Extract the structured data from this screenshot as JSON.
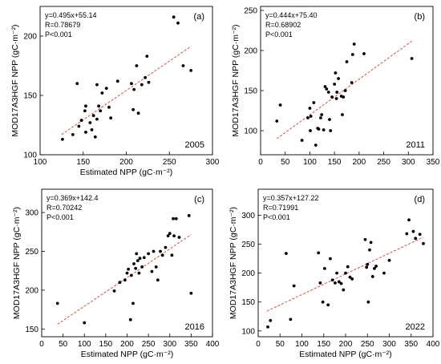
{
  "chart_data": [
    {
      "type": "scatter",
      "panel_label": "(a)",
      "year_label": "2005",
      "xlabel": "Estimated NPP (gC·m⁻²)",
      "ylabel": "MOD17A3HGF NPP (gC·m⁻²)",
      "equation": "y=0.495x+55.14",
      "r_text": "R=0.78679",
      "p_text": "P<0.001",
      "xlim": [
        100,
        300
      ],
      "ylim": [
        100,
        225
      ],
      "xticks": [
        100,
        150,
        200,
        250,
        300
      ],
      "yticks": [
        100,
        150,
        200
      ],
      "fit": {
        "slope": 0.495,
        "intercept": 55.14,
        "x_range": [
          125,
          275
        ]
      },
      "points": [
        [
          126,
          113
        ],
        [
          138,
          117
        ],
        [
          143,
          160
        ],
        [
          145,
          124
        ],
        [
          148,
          129
        ],
        [
          152,
          137
        ],
        [
          153,
          119
        ],
        [
          153,
          141
        ],
        [
          158,
          127
        ],
        [
          160,
          121
        ],
        [
          162,
          133
        ],
        [
          164,
          115
        ],
        [
          166,
          130
        ],
        [
          166,
          159
        ],
        [
          168,
          141
        ],
        [
          170,
          137
        ],
        [
          172,
          152
        ],
        [
          177,
          156
        ],
        [
          180,
          140
        ],
        [
          182,
          131
        ],
        [
          190,
          162
        ],
        [
          206,
          160
        ],
        [
          208,
          138
        ],
        [
          209,
          155
        ],
        [
          212,
          175
        ],
        [
          214,
          135
        ],
        [
          218,
          159
        ],
        [
          222,
          165
        ],
        [
          224,
          183
        ],
        [
          226,
          161
        ],
        [
          255,
          216
        ],
        [
          260,
          211
        ],
        [
          266,
          175
        ],
        [
          275,
          171
        ]
      ]
    },
    {
      "type": "scatter",
      "panel_label": "(b)",
      "year_label": "2011",
      "xlabel": "",
      "ylabel": "MOD17A3HGF NPP (gC·m⁻²)",
      "equation": "y=0.444x+75.40",
      "r_text": "R=0.68902",
      "p_text": "P<0.001",
      "xlim": [
        0,
        350
      ],
      "ylim": [
        70,
        255
      ],
      "xticks": [
        0,
        50,
        100,
        150,
        200,
        250,
        300,
        350
      ],
      "yticks": [
        100,
        150,
        200,
        250
      ],
      "fit": {
        "slope": 0.444,
        "intercept": 75.4,
        "x_range": [
          33,
          307
        ]
      },
      "points": [
        [
          33,
          112
        ],
        [
          40,
          132
        ],
        [
          84,
          88
        ],
        [
          96,
          116
        ],
        [
          100,
          128
        ],
        [
          101,
          100
        ],
        [
          102,
          118
        ],
        [
          108,
          135
        ],
        [
          112,
          82
        ],
        [
          116,
          103
        ],
        [
          118,
          102
        ],
        [
          122,
          116
        ],
        [
          124,
          120
        ],
        [
          128,
          101
        ],
        [
          131,
          155
        ],
        [
          134,
          152
        ],
        [
          138,
          148
        ],
        [
          140,
          114
        ],
        [
          142,
          100
        ],
        [
          145,
          142
        ],
        [
          150,
          158
        ],
        [
          152,
          172
        ],
        [
          154,
          140
        ],
        [
          155,
          148
        ],
        [
          158,
          165
        ],
        [
          164,
          143
        ],
        [
          166,
          120
        ],
        [
          168,
          142
        ],
        [
          172,
          150
        ],
        [
          175,
          186
        ],
        [
          185,
          160
        ],
        [
          187,
          195
        ],
        [
          190,
          208
        ],
        [
          210,
          196
        ],
        [
          307,
          190
        ]
      ]
    },
    {
      "type": "scatter",
      "panel_label": "(c)",
      "year_label": "2016",
      "xlabel": "Estimated NPP (gC·m⁻²)",
      "ylabel": "MOD17A3HGF NPP (gC·m⁻²)",
      "equation": "y=0.369x+142.4",
      "r_text": "R=0.70242",
      "p_text": "P<0.001",
      "xlim": [
        0,
        400
      ],
      "ylim": [
        140,
        330
      ],
      "xticks": [
        0,
        50,
        100,
        150,
        200,
        250,
        300,
        350,
        400
      ],
      "yticks": [
        150,
        200,
        250,
        300
      ],
      "fit": {
        "slope": 0.369,
        "intercept": 142.4,
        "x_range": [
          37,
          350
        ]
      },
      "points": [
        [
          37,
          183
        ],
        [
          100,
          158
        ],
        [
          170,
          199
        ],
        [
          183,
          210
        ],
        [
          195,
          213
        ],
        [
          200,
          222
        ],
        [
          203,
          227
        ],
        [
          208,
          162
        ],
        [
          210,
          219
        ],
        [
          214,
          183
        ],
        [
          216,
          234
        ],
        [
          220,
          228
        ],
        [
          222,
          247
        ],
        [
          225,
          238
        ],
        [
          228,
          222
        ],
        [
          230,
          241
        ],
        [
          235,
          230
        ],
        [
          240,
          242
        ],
        [
          250,
          247
        ],
        [
          258,
          224
        ],
        [
          262,
          250
        ],
        [
          268,
          230
        ],
        [
          272,
          213
        ],
        [
          278,
          250
        ],
        [
          283,
          245
        ],
        [
          290,
          255
        ],
        [
          296,
          270
        ],
        [
          300,
          273
        ],
        [
          305,
          245
        ],
        [
          308,
          292
        ],
        [
          310,
          270
        ],
        [
          315,
          292
        ],
        [
          322,
          268
        ],
        [
          345,
          296
        ],
        [
          350,
          196
        ]
      ]
    },
    {
      "type": "scatter",
      "panel_label": "(d)",
      "year_label": "2022",
      "xlabel": "Estimated NPP (gC·m⁻²)",
      "ylabel": "MOD17A3HGF NPP (gC·m⁻²)",
      "equation": "y=0.357x+127.22",
      "r_text": "R=0.71991",
      "p_text": "P<0.001",
      "xlim": [
        0,
        400
      ],
      "ylim": [
        90,
        345
      ],
      "xticks": [
        0,
        50,
        100,
        150,
        200,
        250,
        300,
        350,
        400
      ],
      "yticks": [
        100,
        150,
        200,
        250,
        300
      ],
      "fit": {
        "slope": 0.357,
        "intercept": 127.22,
        "x_range": [
          20,
          378
        ]
      },
      "points": [
        [
          22,
          107
        ],
        [
          28,
          118
        ],
        [
          64,
          234
        ],
        [
          74,
          120
        ],
        [
          82,
          178
        ],
        [
          138,
          235
        ],
        [
          142,
          183
        ],
        [
          148,
          150
        ],
        [
          152,
          208
        ],
        [
          160,
          145
        ],
        [
          165,
          225
        ],
        [
          170,
          188
        ],
        [
          176,
          183
        ],
        [
          180,
          200
        ],
        [
          185,
          185
        ],
        [
          190,
          182
        ],
        [
          195,
          171
        ],
        [
          200,
          200
        ],
        [
          205,
          211
        ],
        [
          210,
          193
        ],
        [
          215,
          190
        ],
        [
          245,
          258
        ],
        [
          248,
          210
        ],
        [
          250,
          215
        ],
        [
          252,
          150
        ],
        [
          255,
          240
        ],
        [
          258,
          253
        ],
        [
          262,
          194
        ],
        [
          266,
          208
        ],
        [
          270,
          212
        ],
        [
          288,
          200
        ],
        [
          300,
          222
        ],
        [
          340,
          268
        ],
        [
          345,
          292
        ],
        [
          355,
          272
        ],
        [
          360,
          260
        ],
        [
          370,
          267
        ],
        [
          378,
          251
        ]
      ]
    }
  ]
}
